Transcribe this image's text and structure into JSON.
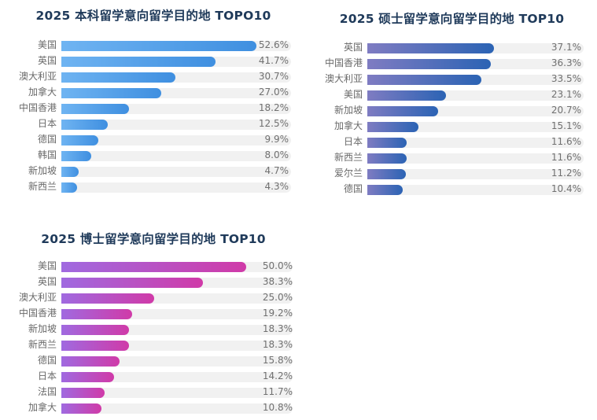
{
  "chart_data": [
    {
      "type": "bar",
      "orientation": "horizontal",
      "title": "2025 本科留学意向留学目的地 TOPO10",
      "categories": [
        "美国",
        "英国",
        "澳大利亚",
        "加拿大",
        "中国香港",
        "日本",
        "德国",
        "韩国",
        "新加坡",
        "新西兰"
      ],
      "values": [
        52.6,
        41.7,
        30.7,
        27.0,
        18.2,
        12.5,
        9.9,
        8.0,
        4.7,
        4.3
      ],
      "value_labels": [
        "52.6%",
        "41.7%",
        "30.7%",
        "27.0%",
        "18.2%",
        "12.5%",
        "9.9%",
        "8.0%",
        "4.7%",
        "4.3%"
      ],
      "unit": "%",
      "xlim": [
        0,
        62
      ],
      "colors": {
        "start": "#6fb4f2",
        "end": "#3f8fe0"
      },
      "grid": false,
      "legend": "none"
    },
    {
      "type": "bar",
      "orientation": "horizontal",
      "title": "2025 硕士留学意向留学目的地 TOP10",
      "categories": [
        "英国",
        "中国香港",
        "澳大利亚",
        "美国",
        "新加坡",
        "加拿大",
        "日本",
        "新西兰",
        "爱尔兰",
        "德国"
      ],
      "values": [
        37.1,
        36.3,
        33.5,
        23.1,
        20.7,
        15.1,
        11.6,
        11.6,
        11.2,
        10.4
      ],
      "value_labels": [
        "37.1%",
        "36.3%",
        "33.5%",
        "23.1%",
        "20.7%",
        "15.1%",
        "11.6%",
        "11.6%",
        "11.2%",
        "10.4%"
      ],
      "unit": "%",
      "xlim": [
        0,
        63.5
      ],
      "colors": {
        "start": "#7f7cc2",
        "end": "#2b63b4"
      },
      "grid": false,
      "legend": "none"
    },
    {
      "type": "bar",
      "orientation": "horizontal",
      "title": "2025 博士留学意向留学目的地 TOP10",
      "categories": [
        "美国",
        "英国",
        "澳大利亚",
        "中国香港",
        "新加坡",
        "新西兰",
        "德国",
        "日本",
        "法国",
        "加拿大"
      ],
      "values": [
        50.0,
        38.3,
        25.0,
        19.2,
        18.3,
        18.3,
        15.8,
        14.2,
        11.7,
        10.8
      ],
      "value_labels": [
        "50.0%",
        "38.3%",
        "25.0%",
        "19.2%",
        "18.3%",
        "18.3%",
        "15.8%",
        "14.2%",
        "11.7%",
        "10.8%"
      ],
      "unit": "%",
      "xlim": [
        0,
        62.5
      ],
      "colors": {
        "start": "#a06ae0",
        "end": "#d03aa8"
      },
      "grid": false,
      "legend": "none"
    }
  ]
}
